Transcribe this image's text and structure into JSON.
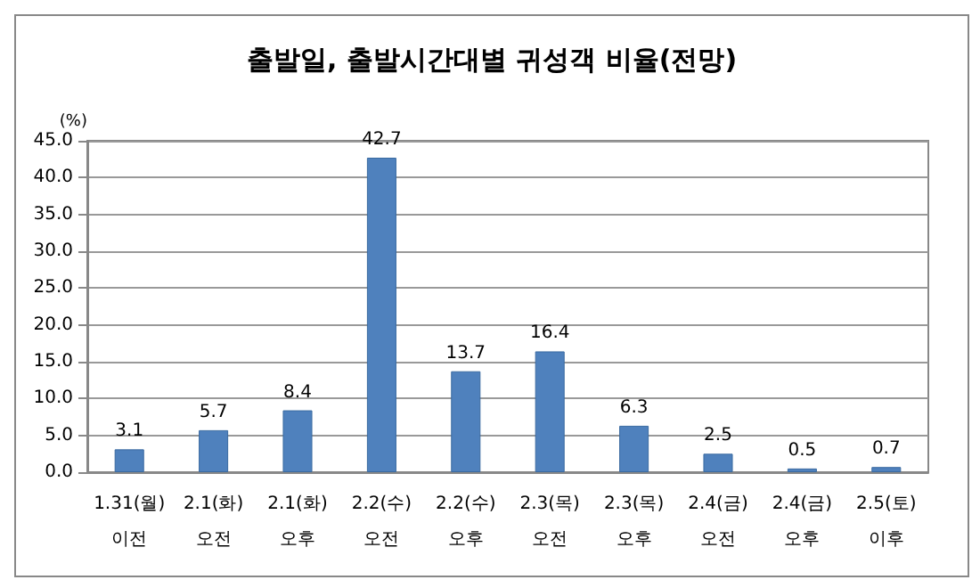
{
  "chart_data": {
    "type": "bar",
    "title": "출발일, 출발시간대별 귀성객 비율(전망)",
    "ylabel": "(%)",
    "categories": [
      "1.31(월)\n이전",
      "2.1(화)\n오전",
      "2.1(화)\n오후",
      "2.2(수)\n오전",
      "2.2(수)\n오후",
      "2.3(목)\n오전",
      "2.3(목)\n오후",
      "2.4(금)\n오전",
      "2.4(금)\n오후",
      "2.5(토)\n이후"
    ],
    "values": [
      3.1,
      5.7,
      8.4,
      42.7,
      13.7,
      16.4,
      6.3,
      2.5,
      0.5,
      0.7
    ],
    "color": "#4f81bd",
    "data_labels": true,
    "grid": "y",
    "ylim": [
      0,
      45
    ],
    "yticks": [
      {
        "value": 0,
        "label": "0.0"
      },
      {
        "value": 5,
        "label": "5.0"
      },
      {
        "value": 10,
        "label": "10.0"
      },
      {
        "value": 15,
        "label": "15.0"
      },
      {
        "value": 20,
        "label": "20.0"
      },
      {
        "value": 25,
        "label": "25.0"
      },
      {
        "value": 30,
        "label": "30.0"
      },
      {
        "value": 35,
        "label": "35.0"
      },
      {
        "value": 40,
        "label": "40.0"
      },
      {
        "value": 45,
        "label": "45.0"
      }
    ]
  }
}
